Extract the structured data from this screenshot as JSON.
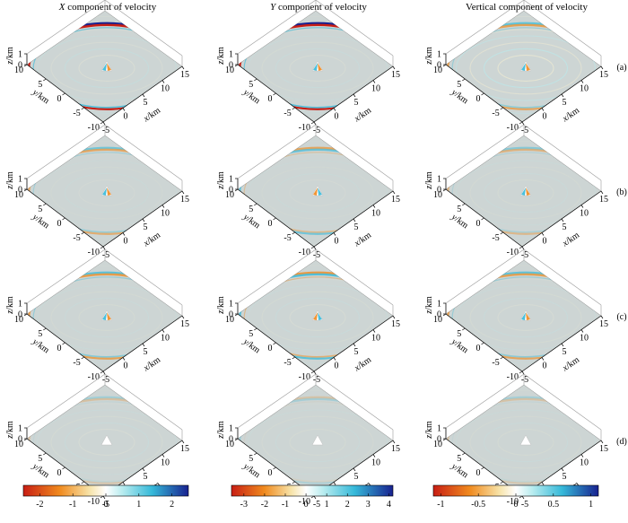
{
  "columns": [
    {
      "name": "X",
      "rest": " component of velocity",
      "italic_name": true
    },
    {
      "name": "Y",
      "rest": " component of velocity",
      "italic_name": true
    },
    {
      "name": "",
      "rest": "Vertical component of velocity",
      "italic_name": false
    }
  ],
  "rows": [
    "(a)",
    "(b)",
    "(c)",
    "(d)"
  ],
  "axes": {
    "z_label_var": "z",
    "z_label_unit": "/km",
    "y_label_var": "y",
    "y_label_unit": "/km",
    "x_label_var": "x",
    "x_label_unit": "/km",
    "z_ticks": [
      "1",
      "0"
    ],
    "y_ticks": [
      "10",
      "5",
      "0",
      "-5",
      "-10"
    ],
    "x_ticks": [
      "-5",
      "0",
      "5",
      "10",
      "15"
    ]
  },
  "colorbars": [
    {
      "ticks": [
        {
          "v": -2,
          "label": "-2"
        },
        {
          "v": -1,
          "label": "-1"
        },
        {
          "v": 0,
          "label": "0"
        },
        {
          "v": 1,
          "label": "1"
        },
        {
          "v": 2,
          "label": "2"
        }
      ],
      "min": -2.5,
      "max": 2.5
    },
    {
      "ticks": [
        {
          "v": -3,
          "label": "-3"
        },
        {
          "v": -2,
          "label": "-2"
        },
        {
          "v": -1,
          "label": "-1"
        },
        {
          "v": 0,
          "label": "0"
        },
        {
          "v": 1,
          "label": "1"
        },
        {
          "v": 2,
          "label": "2"
        },
        {
          "v": 3,
          "label": "3"
        },
        {
          "v": 4,
          "label": "4"
        }
      ],
      "min": -3.6,
      "max": 4.2
    },
    {
      "ticks": [
        {
          "v": -1,
          "label": "-1"
        },
        {
          "v": -0.5,
          "label": "-0.5"
        },
        {
          "v": 0,
          "label": "0"
        },
        {
          "v": 0.5,
          "label": "0.5"
        },
        {
          "v": 1,
          "label": "1"
        }
      ],
      "min": -1.1,
      "max": 1.1
    }
  ],
  "colors": {
    "background": "#cdd5d4",
    "neg_strong": "#c81e14",
    "neg_mid": "#f08a1e",
    "neg_weak": "#f7e3a8",
    "zero": "#ffffff",
    "pos_weak": "#b8ecef",
    "pos_mid": "#35b9d9",
    "pos_strong": "#18218f"
  },
  "wavefields": [
    [
      {
        "front": 1.0,
        "sign": 1,
        "rings": 0.35
      },
      {
        "front": 1.0,
        "sign": 1,
        "rings": 0.25
      },
      {
        "front": 0.55,
        "sign": 1,
        "rings": 0.7
      }
    ],
    [
      {
        "front": 0.45,
        "sign": 1,
        "rings": 0.15
      },
      {
        "front": 0.5,
        "sign": -1,
        "rings": 0.15
      },
      {
        "front": 0.3,
        "sign": 1,
        "rings": 0.2
      }
    ],
    [
      {
        "front": 0.6,
        "sign": 1,
        "rings": 0.2
      },
      {
        "front": 0.65,
        "sign": -1,
        "rings": 0.25
      },
      {
        "front": 0.55,
        "sign": 1,
        "rings": 0.25
      }
    ],
    [
      {
        "front": 0.12,
        "sign": 1,
        "rings": 0.25
      },
      {
        "front": 0.1,
        "sign": -1,
        "rings": 0.2
      },
      {
        "front": 0.1,
        "sign": 1,
        "rings": 0.2
      }
    ]
  ]
}
